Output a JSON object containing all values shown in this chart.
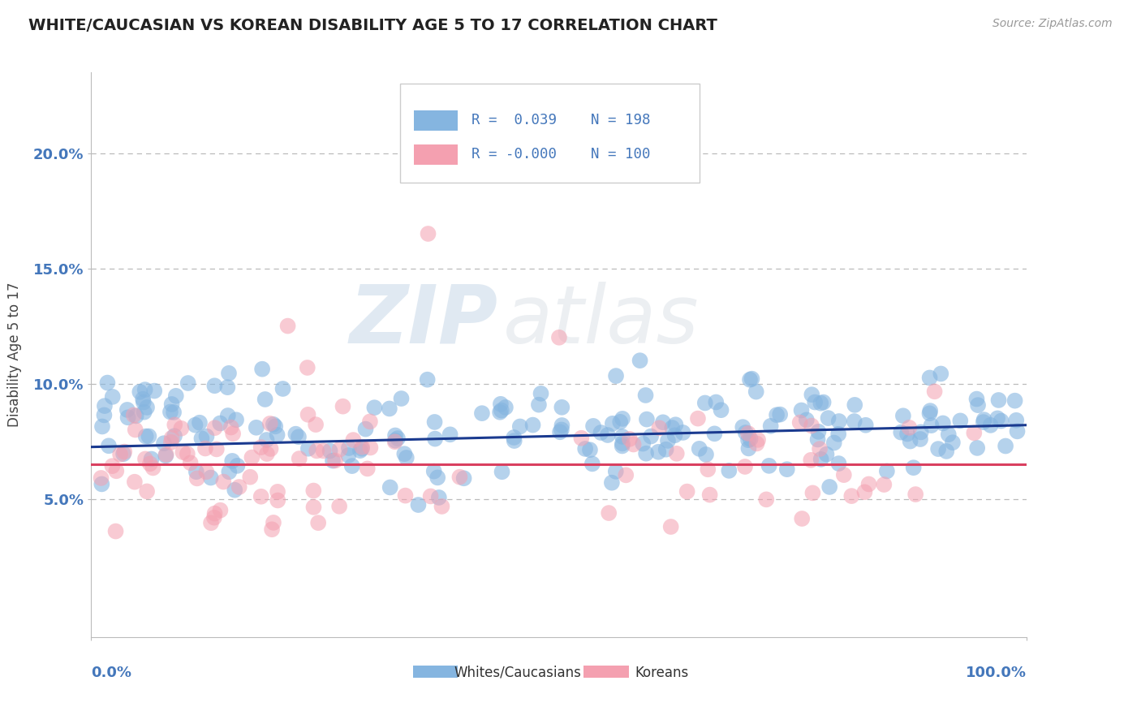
{
  "title": "WHITE/CAUCASIAN VS KOREAN DISABILITY AGE 5 TO 17 CORRELATION CHART",
  "source": "Source: ZipAtlas.com",
  "ylabel": "Disability Age 5 to 17",
  "xlim": [
    0,
    1
  ],
  "ylim": [
    -0.01,
    0.235
  ],
  "yticks": [
    0.05,
    0.1,
    0.15,
    0.2
  ],
  "ytick_labels": [
    "5.0%",
    "10.0%",
    "15.0%",
    "20.0%"
  ],
  "blue_R": 0.039,
  "blue_N": 198,
  "pink_R": -0.0,
  "pink_N": 100,
  "blue_color": "#85B5E0",
  "pink_color": "#F4A0B0",
  "blue_line_color": "#1A3A8F",
  "pink_line_color": "#D94060",
  "legend_label_blue": "Whites/Caucasians",
  "legend_label_pink": "Koreans",
  "watermark_zip": "ZIP",
  "watermark_atlas": "atlas",
  "title_color": "#222222",
  "axis_color": "#4477BB",
  "grid_color": "#BBBBBB",
  "background_color": "#FFFFFF",
  "blue_seed": 1234,
  "pink_seed": 5678,
  "blue_trend_x0": 0.0,
  "blue_trend_x1": 1.0,
  "blue_trend_y0": 0.0725,
  "blue_trend_y1": 0.082,
  "pink_trend_x0": 0.0,
  "pink_trend_x1": 1.0,
  "pink_trend_y0": 0.065,
  "pink_trend_y1": 0.065
}
